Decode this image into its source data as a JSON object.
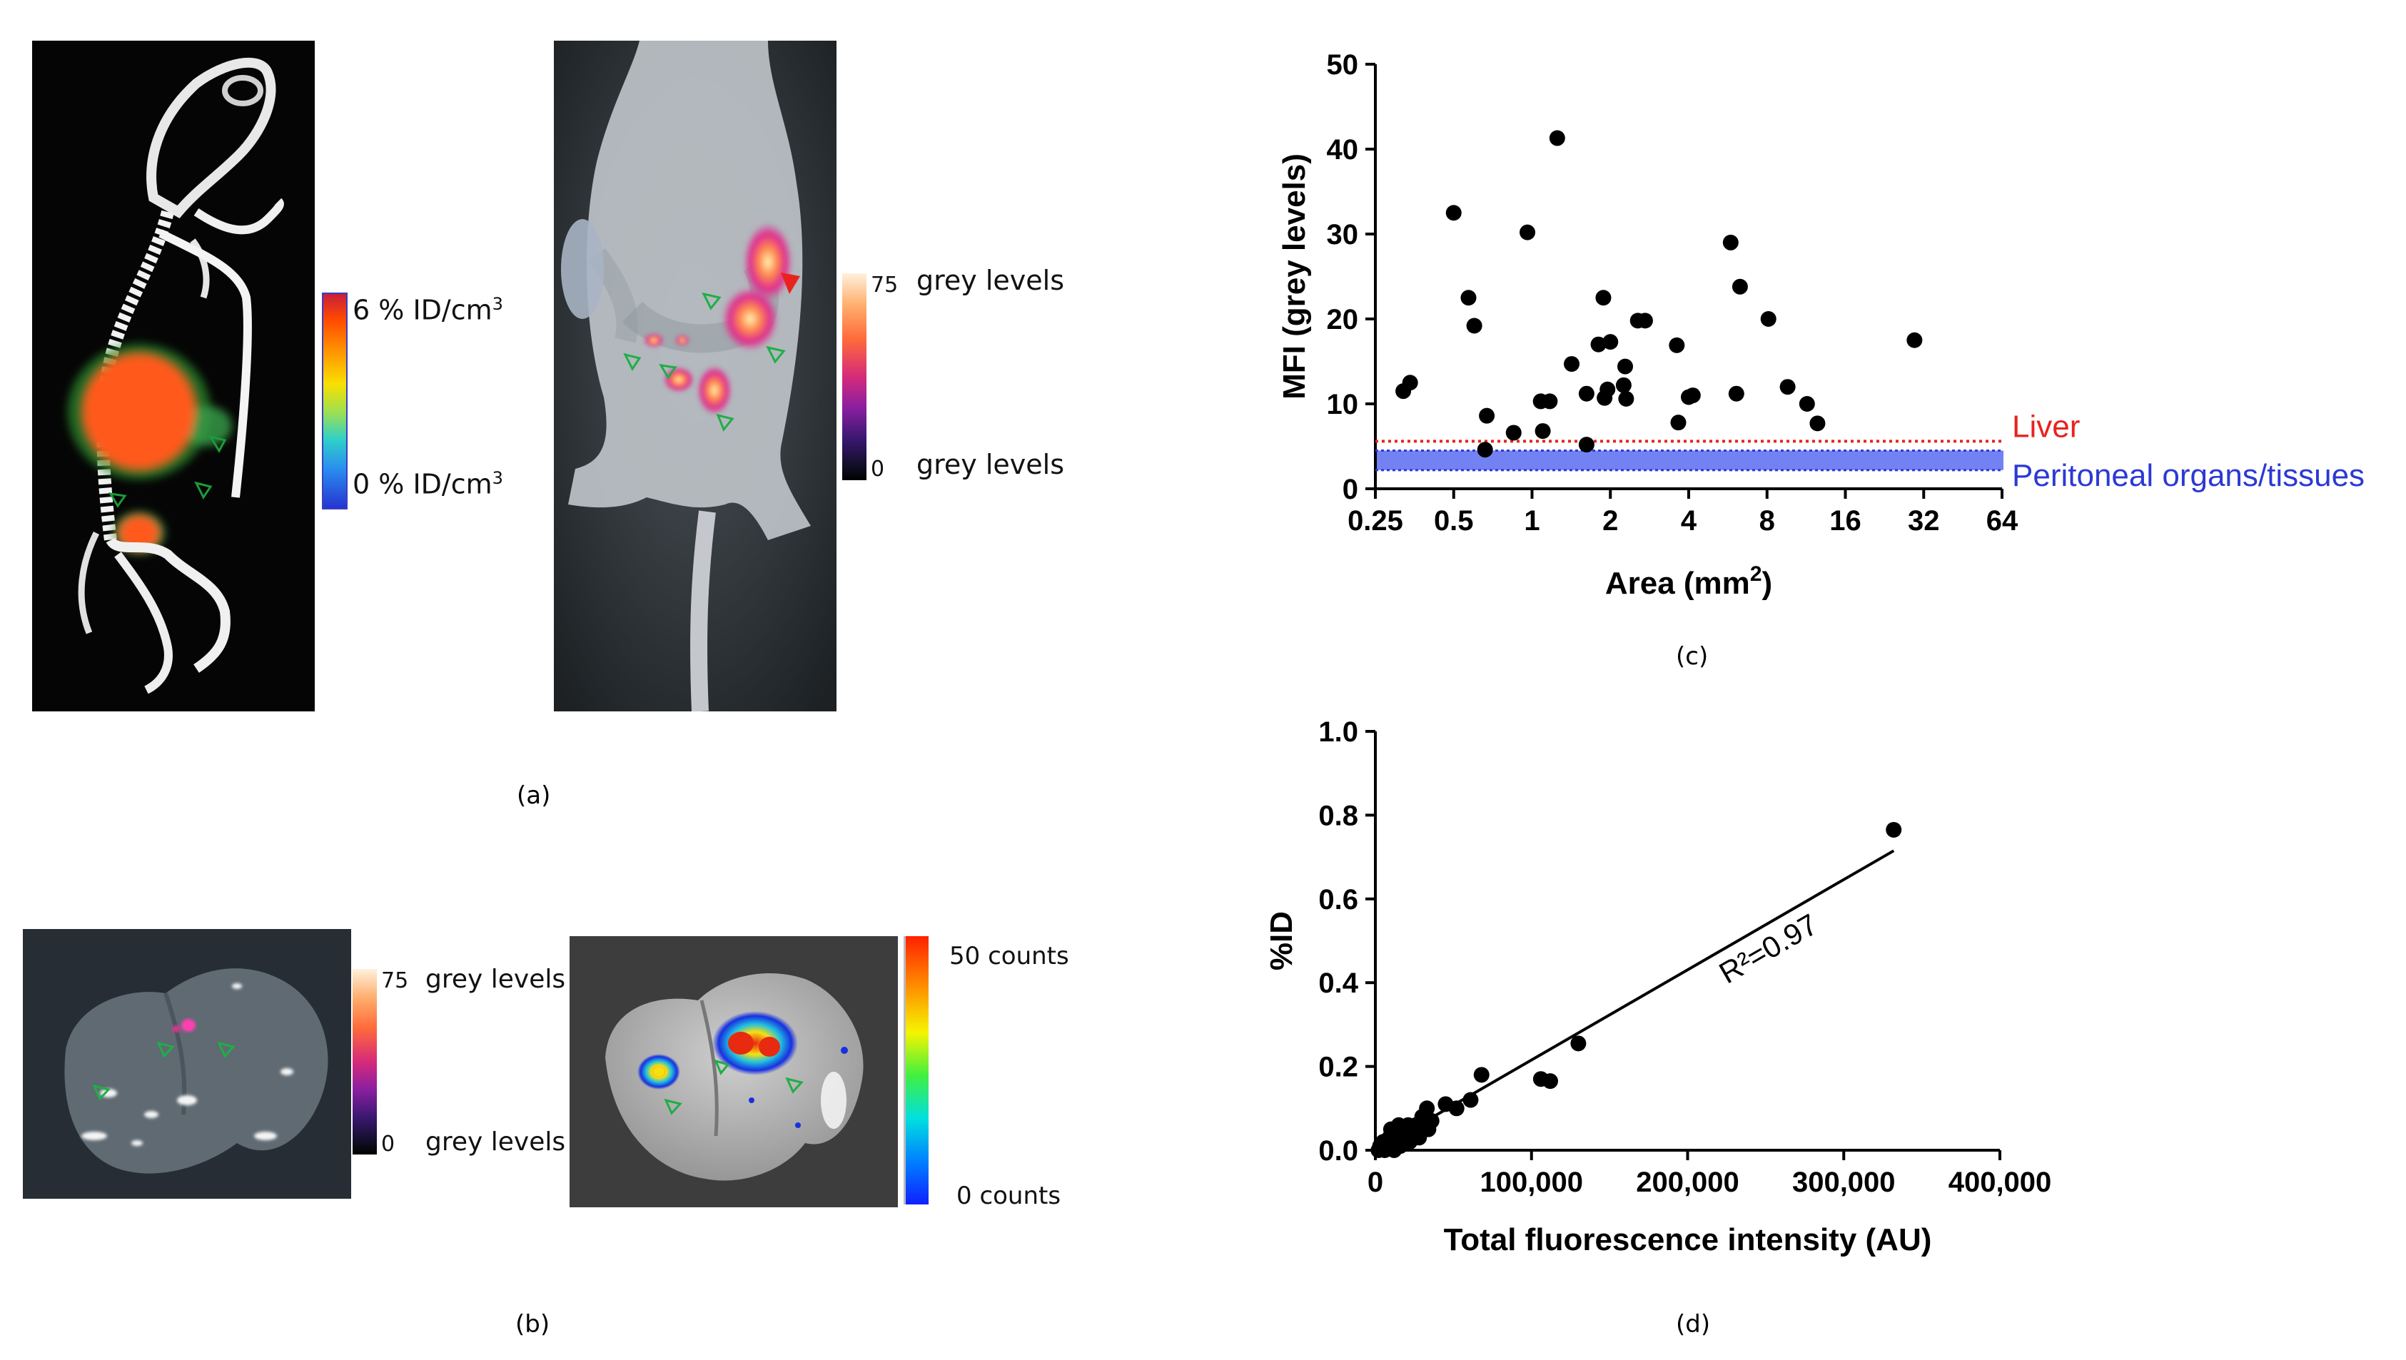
{
  "panels": {
    "a": "(a)",
    "b": "(b)",
    "c": "(c)",
    "d": "(d)"
  },
  "panel_a": {
    "ct_colorbar": {
      "max_label": "6 % ID/cm",
      "max_sup": "3",
      "min_label": "0 % ID/cm",
      "min_sup": "3"
    },
    "fluo_colorbar": {
      "max_value": "75",
      "min_value": "0",
      "max_unit": "grey levels",
      "min_unit": "grey levels"
    }
  },
  "panel_b": {
    "fluo_colorbar": {
      "max_value": "75",
      "min_value": "0",
      "max_unit": "grey levels",
      "min_unit": "grey levels"
    },
    "counts_colorbar": {
      "max_label": "50 counts",
      "min_label": "0 counts"
    }
  },
  "colors": {
    "liver_line": "#e8231f",
    "peritoneal_band": "#5b6cf0",
    "peritoneal_line": "#2c39d4",
    "ct_bg": "#050505",
    "hot": "#ff5a1a"
  },
  "chart_data": [
    {
      "id": "c",
      "type": "scatter",
      "xlabel": "Area (mm",
      "xlabel_sup": "2",
      "xlabel_end": ")",
      "ylabel": "MFI (grey levels)",
      "xscale": "log2",
      "xlim": [
        0.25,
        64
      ],
      "ylim": [
        0,
        50
      ],
      "xticks": [
        0.25,
        0.5,
        1,
        2,
        4,
        8,
        16,
        32,
        64
      ],
      "xtick_labels": [
        "0.25",
        "0.5",
        "1",
        "2",
        "4",
        "8",
        "16",
        "32",
        "64"
      ],
      "yticks": [
        0,
        10,
        20,
        30,
        40,
        50
      ],
      "ytick_labels": [
        "0",
        "10",
        "20",
        "30",
        "40",
        "50"
      ],
      "reference": [
        {
          "name": "Liver",
          "value": 5.6,
          "style": "dotted-line"
        },
        {
          "name": "Peritoneal organs/tissues",
          "range": [
            2.2,
            4.5
          ],
          "style": "band"
        }
      ],
      "points": [
        [
          0.32,
          11.5
        ],
        [
          0.34,
          12.5
        ],
        [
          0.5,
          32.5
        ],
        [
          0.57,
          22.5
        ],
        [
          0.6,
          19.2
        ],
        [
          0.66,
          4.6
        ],
        [
          0.67,
          8.6
        ],
        [
          0.85,
          6.6
        ],
        [
          0.96,
          30.2
        ],
        [
          1.08,
          10.3
        ],
        [
          1.1,
          6.8
        ],
        [
          1.17,
          10.3
        ],
        [
          1.25,
          41.3
        ],
        [
          1.42,
          14.7
        ],
        [
          1.62,
          11.2
        ],
        [
          1.62,
          5.2
        ],
        [
          1.8,
          17.0
        ],
        [
          1.88,
          22.5
        ],
        [
          1.9,
          10.7
        ],
        [
          1.95,
          11.7
        ],
        [
          2.0,
          17.3
        ],
        [
          2.25,
          12.2
        ],
        [
          2.28,
          14.4
        ],
        [
          2.3,
          10.6
        ],
        [
          2.55,
          19.8
        ],
        [
          2.72,
          19.8
        ],
        [
          3.6,
          16.9
        ],
        [
          3.65,
          7.8
        ],
        [
          4.0,
          10.8
        ],
        [
          4.15,
          11.0
        ],
        [
          5.8,
          29.0
        ],
        [
          6.1,
          11.2
        ],
        [
          6.3,
          23.8
        ],
        [
          8.1,
          20.0
        ],
        [
          9.6,
          12.0
        ],
        [
          11.4,
          10.0
        ],
        [
          12.5,
          7.7
        ],
        [
          29.5,
          17.5
        ]
      ]
    },
    {
      "id": "d",
      "type": "scatter",
      "xlabel": "Total fluorescence intensity (AU)",
      "ylabel": "%ID",
      "xlim": [
        0,
        400000
      ],
      "ylim": [
        0,
        1.0
      ],
      "xticks": [
        0,
        100000,
        200000,
        300000,
        400000
      ],
      "xtick_labels": [
        "0",
        "100,000",
        "200,000",
        "300,000",
        "400,000"
      ],
      "yticks": [
        0,
        0.2,
        0.4,
        0.6,
        0.8,
        1.0
      ],
      "ytick_labels": [
        "0.0",
        "0.2",
        "0.4",
        "0.6",
        "0.8",
        "1.0"
      ],
      "annotation": "R²=0.97",
      "fit": {
        "x": [
          0,
          332000
        ],
        "y": [
          0.0,
          0.715
        ]
      },
      "points": [
        [
          2000,
          0.0
        ],
        [
          3000,
          0.01
        ],
        [
          5000,
          0.02
        ],
        [
          6000,
          0.0
        ],
        [
          8000,
          0.01
        ],
        [
          9000,
          0.03
        ],
        [
          10000,
          0.05
        ],
        [
          11000,
          0.02
        ],
        [
          12000,
          0.0
        ],
        [
          14000,
          0.04
        ],
        [
          15000,
          0.06
        ],
        [
          16000,
          0.01
        ],
        [
          18000,
          0.03
        ],
        [
          19000,
          0.05
        ],
        [
          21000,
          0.06
        ],
        [
          22000,
          0.02
        ],
        [
          24000,
          0.04
        ],
        [
          26000,
          0.06
        ],
        [
          28000,
          0.03
        ],
        [
          30000,
          0.08
        ],
        [
          33000,
          0.1
        ],
        [
          34000,
          0.05
        ],
        [
          36000,
          0.07
        ],
        [
          45000,
          0.11
        ],
        [
          52000,
          0.1
        ],
        [
          61000,
          0.12
        ],
        [
          68000,
          0.18
        ],
        [
          106000,
          0.17
        ],
        [
          112000,
          0.165
        ],
        [
          130000,
          0.255
        ],
        [
          332000,
          0.765
        ]
      ]
    }
  ]
}
